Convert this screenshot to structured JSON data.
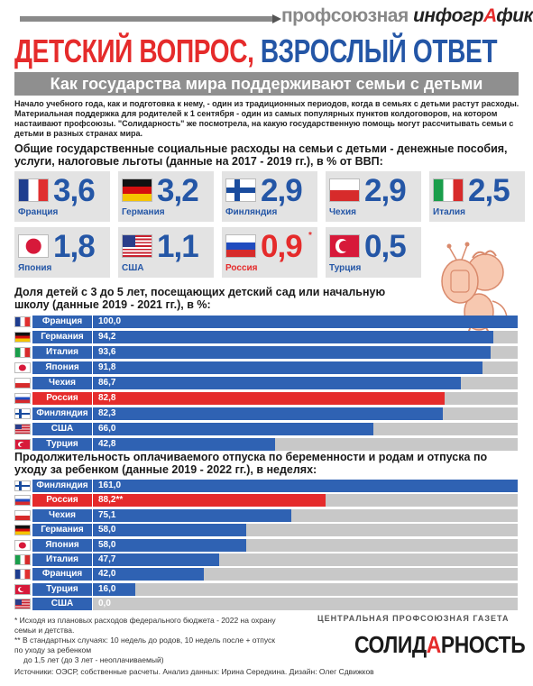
{
  "header": {
    "brand_part1": "профсоюзная",
    "brand_part2": "инфогр",
    "brand_part3": "А",
    "brand_part4": "фика"
  },
  "title": {
    "part1": "ДЕТСКИЙ ВОПРОС,",
    "part2": "ВЗРОСЛЫЙ ОТВЕТ"
  },
  "subtitle": "Как государства мира поддерживают семьи с детьми",
  "intro": "Начало учебного года, как и подготовка к нему, - один из традиционных периодов, когда в семьях с детьми растут расходы. Материальная поддержка для родителей к 1 сентября - один из самых популярных пунктов колдоговоров, на котором настаивают профсоюзы. \"Солидарность\" же посмотрела, на какую государственную помощь могут рассчитывать семьи с детьми в разных странах мира.",
  "colors": {
    "accent_blue": "#2f62b3",
    "accent_red": "#e52b2b",
    "bar_background": "#c8c8c8"
  },
  "chart_data": [
    {
      "type": "table",
      "title": "Общие государственные социальные расходы на семьи с детьми - денежные пособия, услуги, налоговые льготы (данные на 2017 - 2019 гг.), в % от ВВП:",
      "items": [
        {
          "country": "Франция",
          "value_label": "3,6",
          "value": 3.6,
          "flag": "flag-france"
        },
        {
          "country": "Германия",
          "value_label": "3,2",
          "value": 3.2,
          "flag": "flag-germany"
        },
        {
          "country": "Финляндия",
          "value_label": "2,9",
          "value": 2.9,
          "flag": "flag-finland"
        },
        {
          "country": "Чехия",
          "value_label": "2,9",
          "value": 2.9,
          "flag": "flag-czechia"
        },
        {
          "country": "Италия",
          "value_label": "2,5",
          "value": 2.5,
          "flag": "flag-italy"
        },
        {
          "country": "Япония",
          "value_label": "1,8",
          "value": 1.8,
          "flag": "flag-japan"
        },
        {
          "country": "США",
          "value_label": "1,1",
          "value": 1.1,
          "flag": "flag-usa"
        },
        {
          "country": "Россия",
          "value_label": "0,9",
          "value": 0.9,
          "flag": "flag-russia",
          "highlight": true,
          "note": "*"
        },
        {
          "country": "Турция",
          "value_label": "0,5",
          "value": 0.5,
          "flag": "flag-turkey"
        }
      ]
    },
    {
      "type": "bar",
      "title": "Доля детей с 3 до 5 лет, посещающих детский сад или начальную школу (данные 2019 - 2021 гг.), в %:",
      "xlim": [
        0,
        100
      ],
      "items": [
        {
          "country": "Франция",
          "value": 100.0,
          "value_label": "100,0",
          "flag": "flag-france"
        },
        {
          "country": "Германия",
          "value": 94.2,
          "value_label": "94,2",
          "flag": "flag-germany"
        },
        {
          "country": "Италия",
          "value": 93.6,
          "value_label": "93,6",
          "flag": "flag-italy"
        },
        {
          "country": "Япония",
          "value": 91.8,
          "value_label": "91,8",
          "flag": "flag-japan"
        },
        {
          "country": "Чехия",
          "value": 86.7,
          "value_label": "86,7",
          "flag": "flag-czechia"
        },
        {
          "country": "Россия",
          "value": 82.8,
          "value_label": "82,8",
          "flag": "flag-russia",
          "highlight": true
        },
        {
          "country": "Финляндия",
          "value": 82.3,
          "value_label": "82,3",
          "flag": "flag-finland"
        },
        {
          "country": "США",
          "value": 66.0,
          "value_label": "66,0",
          "flag": "flag-usa"
        },
        {
          "country": "Турция",
          "value": 42.8,
          "value_label": "42,8",
          "flag": "flag-turkey"
        }
      ]
    },
    {
      "type": "bar",
      "title": "Продолжительность оплачиваемого отпуска по беременности и родам и отпуска по уходу за ребенком (данные 2019 - 2022 гг.), в неделях:",
      "xlim": [
        0,
        161
      ],
      "items": [
        {
          "country": "Финляндия",
          "value": 161.0,
          "value_label": "161,0",
          "flag": "flag-finland"
        },
        {
          "country": "Россия",
          "value": 88.2,
          "value_label": "88,2**",
          "flag": "flag-russia",
          "highlight": true
        },
        {
          "country": "Чехия",
          "value": 75.1,
          "value_label": "75,1",
          "flag": "flag-czechia"
        },
        {
          "country": "Германия",
          "value": 58.0,
          "value_label": "58,0",
          "flag": "flag-germany"
        },
        {
          "country": "Япония",
          "value": 58.0,
          "value_label": "58,0",
          "flag": "flag-japan"
        },
        {
          "country": "Италия",
          "value": 47.7,
          "value_label": "47,7",
          "flag": "flag-italy"
        },
        {
          "country": "Франция",
          "value": 42.0,
          "value_label": "42,0",
          "flag": "flag-france"
        },
        {
          "country": "Турция",
          "value": 16.0,
          "value_label": "16,0",
          "flag": "flag-turkey"
        },
        {
          "country": "США",
          "value": 0.0,
          "value_label": "0,0",
          "flag": "flag-usa"
        }
      ]
    }
  ],
  "footnotes": {
    "note1": "* Исходя из плановых расходов федерального бюджета - 2022 на охрану семьи и детства.",
    "note2": "** В стандартных случаях: 10 недель до родов, 10 недель после + отпуск по уходу за ребенком",
    "note3": "до 1,5 лет (до 3 лет - неоплачиваемый)"
  },
  "publisher": {
    "tagline": "ЦЕНТРАЛЬНАЯ ПРОФСОЮЗНАЯ ГАЗЕТА",
    "logo_part1": "СОЛИД",
    "logo_part2": "А",
    "logo_part3": "РНОСТЬ"
  },
  "sources": "Источники: ОЭСР, собственные расчеты. Анализ данных: Ирина Середкина. Дизайн: Олег Сдвижков",
  "illustration": {
    "icon": "cherub-holding-tv-icon"
  }
}
